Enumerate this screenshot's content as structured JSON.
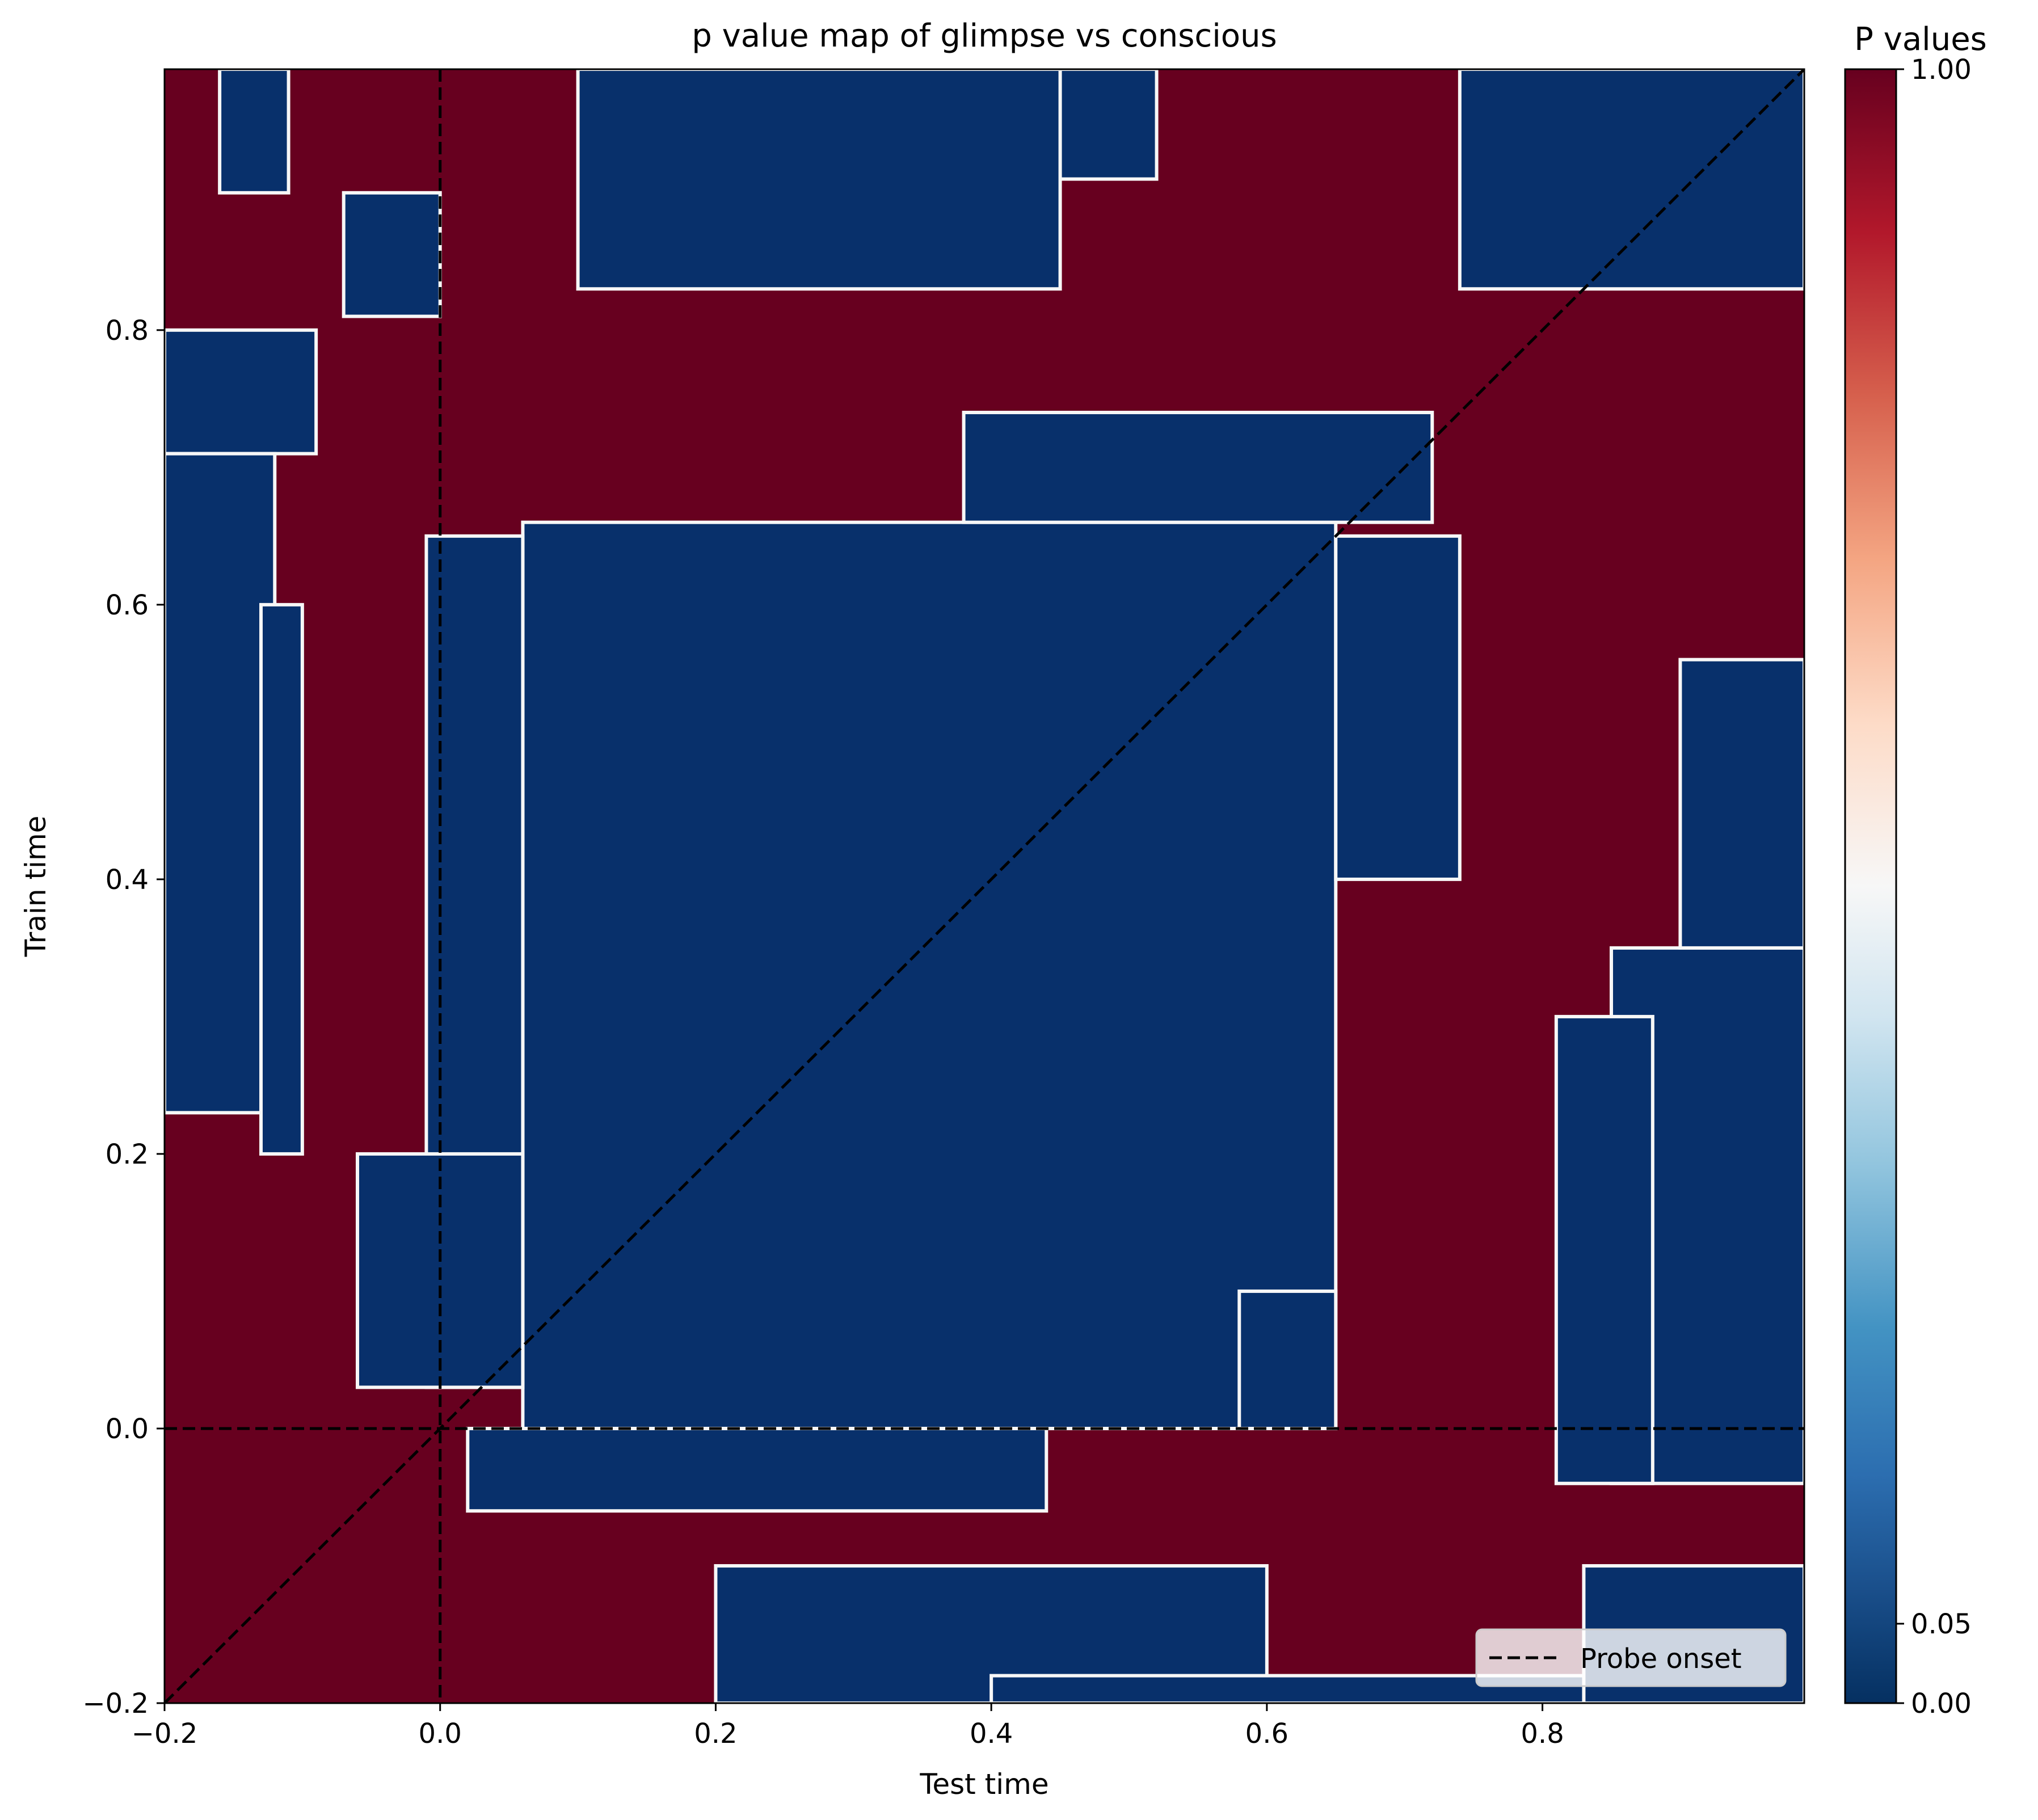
{
  "chart_data": {
    "type": "heatmap",
    "title": "p value map of glimpse vs conscious",
    "xlabel": "Test time",
    "ylabel": "Train time",
    "xlim": [
      -0.2,
      0.99
    ],
    "ylim": [
      -0.2,
      0.99
    ],
    "x_ticks": [
      -0.2,
      0.0,
      0.2,
      0.4,
      0.6,
      0.8
    ],
    "x_tick_labels": [
      "−0.2",
      "0.0",
      "0.2",
      "0.4",
      "0.6",
      "0.8"
    ],
    "y_ticks": [
      -0.2,
      0.0,
      0.2,
      0.4,
      0.6,
      0.8
    ],
    "y_tick_labels": [
      "−0.2",
      "0.0",
      "0.2",
      "0.4",
      "0.6",
      "0.8"
    ],
    "grid": false,
    "legend": {
      "placement": "lower-right",
      "entries": [
        "Probe onset"
      ]
    },
    "colorbar": {
      "title": "P values",
      "colormap": "RdBu_r",
      "ticks": [
        0.0,
        0.05,
        1.0
      ],
      "tick_labels": [
        "0.00",
        "0.05",
        "1.00"
      ],
      "range": [
        0.0,
        1.0
      ],
      "scale": "nonlinear (0.05 centered)"
    },
    "reference_lines": [
      {
        "type": "vertical",
        "x": 0.0,
        "style": "dashed",
        "color": "#000000"
      },
      {
        "type": "horizontal",
        "y": 0.0,
        "style": "dashed",
        "color": "#000000"
      },
      {
        "type": "diagonal",
        "from": [
          -0.2,
          -0.2
        ],
        "to": [
          0.99,
          0.99
        ],
        "style": "dashed",
        "color": "#000000"
      }
    ],
    "values_description": "binary-like map: p near 0.00 (dark blue) vs p near 1.00 (dark red)",
    "significant_regions": [
      {
        "x": [
          0.06,
          0.65
        ],
        "y": [
          0.0,
          0.66
        ],
        "p": 0.0
      },
      {
        "x": [
          0.38,
          0.72
        ],
        "y": [
          0.66,
          0.74
        ],
        "p": 0.0
      },
      {
        "x": [
          0.65,
          0.74
        ],
        "y": [
          0.4,
          0.65
        ],
        "p": 0.0
      },
      {
        "x": [
          -0.01,
          0.06
        ],
        "y": [
          0.03,
          0.65
        ],
        "p": 0.0
      },
      {
        "x": [
          -0.06,
          0.06
        ],
        "y": [
          0.03,
          0.2
        ],
        "p": 0.0
      },
      {
        "x": [
          0.02,
          0.44
        ],
        "y": [
          -0.06,
          0.0
        ],
        "p": 0.0
      },
      {
        "x": [
          0.2,
          0.6
        ],
        "y": [
          -0.2,
          -0.1
        ],
        "p": 0.0
      },
      {
        "x": [
          0.58,
          0.65
        ],
        "y": [
          0.0,
          0.1
        ],
        "p": 0.0
      },
      {
        "x": [
          0.4,
          0.99
        ],
        "y": [
          -0.2,
          -0.18
        ],
        "p": 0.0
      },
      {
        "x": [
          0.83,
          0.99
        ],
        "y": [
          -0.2,
          -0.1
        ],
        "p": 0.0
      },
      {
        "x": [
          0.85,
          0.99
        ],
        "y": [
          -0.04,
          0.35
        ],
        "p": 0.0
      },
      {
        "x": [
          0.9,
          0.99
        ],
        "y": [
          0.35,
          0.56
        ],
        "p": 0.0
      },
      {
        "x": [
          0.81,
          0.88
        ],
        "y": [
          -0.04,
          0.3
        ],
        "p": 0.0
      },
      {
        "x": [
          0.74,
          0.99
        ],
        "y": [
          0.83,
          0.99
        ],
        "p": 0.0
      },
      {
        "x": [
          0.35,
          0.52
        ],
        "y": [
          0.91,
          0.99
        ],
        "p": 0.0
      },
      {
        "x": [
          0.1,
          0.45
        ],
        "y": [
          0.83,
          0.99
        ],
        "p": 0.0
      },
      {
        "x": [
          -0.07,
          0.0
        ],
        "y": [
          0.81,
          0.9
        ],
        "p": 0.0
      },
      {
        "x": [
          -0.2,
          -0.09
        ],
        "y": [
          0.71,
          0.8
        ],
        "p": 0.0
      },
      {
        "x": [
          -0.2,
          -0.12
        ],
        "y": [
          0.23,
          0.71
        ],
        "p": 0.0
      },
      {
        "x": [
          -0.13,
          -0.1
        ],
        "y": [
          0.2,
          0.6
        ],
        "p": 0.0
      },
      {
        "x": [
          -0.16,
          -0.11
        ],
        "y": [
          0.9,
          0.99
        ],
        "p": 0.0
      }
    ]
  },
  "legend_labels": [
    "Probe onset"
  ]
}
